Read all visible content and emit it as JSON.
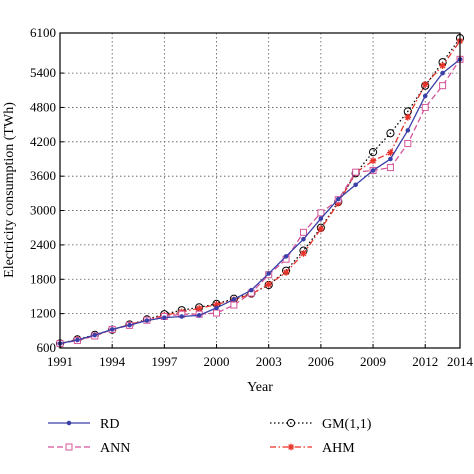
{
  "chart_data": {
    "type": "line",
    "xlabel": "Year",
    "ylabel": "Electricity consumption (TWh)",
    "xlim": [
      1991,
      2014
    ],
    "ylim": [
      600,
      6100
    ],
    "xticks": [
      1991,
      1994,
      1997,
      2000,
      2003,
      2006,
      2009,
      2012,
      2014
    ],
    "yticks": [
      600,
      1200,
      1800,
      2400,
      3000,
      3600,
      4200,
      4800,
      5400,
      6100
    ],
    "grid": true,
    "legend_placement": "bottom",
    "x": [
      1991,
      1992,
      1993,
      1994,
      1995,
      1996,
      1997,
      1998,
      1999,
      2000,
      2001,
      2002,
      2003,
      2004,
      2005,
      2006,
      2007,
      2008,
      2009,
      2010,
      2011,
      2012,
      2013,
      2014
    ],
    "series": [
      {
        "name": "RD",
        "color": "#3b3fa8",
        "line_style": "solid",
        "marker": "dot",
        "values": [
          678,
          740,
          825,
          925,
          1000,
          1080,
          1130,
          1150,
          1170,
          1300,
          1450,
          1610,
          1900,
          2200,
          2500,
          2860,
          3200,
          3450,
          3700,
          3900,
          4400,
          5000,
          5400,
          5640
        ]
      },
      {
        "name": "ANN",
        "color": "#d4559a",
        "line_style": "dashed",
        "marker": "square-open",
        "values": [
          678,
          730,
          810,
          925,
          995,
          1085,
          1150,
          1190,
          1190,
          1210,
          1350,
          1560,
          1880,
          2150,
          2620,
          2960,
          3190,
          3670,
          3700,
          3750,
          4170,
          4800,
          5180,
          5640
        ]
      },
      {
        "name": "GM(1,1)",
        "color": "#000000",
        "line_style": "dotted",
        "marker": "circle-open",
        "values": [
          678,
          750,
          830,
          920,
          1010,
          1100,
          1190,
          1260,
          1310,
          1370,
          1460,
          1550,
          1700,
          1950,
          2300,
          2700,
          3150,
          3650,
          4020,
          4350,
          4730,
          5180,
          5590,
          6010
        ]
      },
      {
        "name": "AHM",
        "color": "#e8332b",
        "line_style": "dashdot",
        "marker": "star",
        "values": [
          678,
          745,
          815,
          920,
          1010,
          1090,
          1170,
          1230,
          1290,
          1360,
          1440,
          1540,
          1710,
          1920,
          2250,
          2680,
          3130,
          3660,
          3870,
          4010,
          4630,
          5200,
          5530,
          5960
        ]
      }
    ]
  }
}
